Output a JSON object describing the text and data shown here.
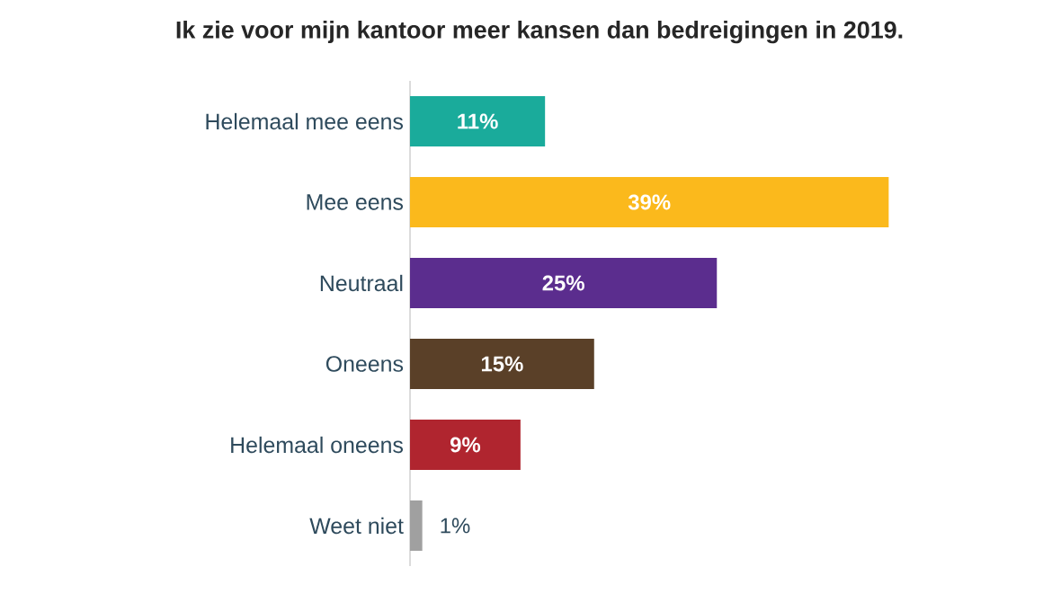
{
  "chart_data": {
    "type": "bar",
    "orientation": "horizontal",
    "title": "Ik zie voor mijn kantoor meer kansen dan bedreigingen in 2019.",
    "categories": [
      "Helemaal mee eens",
      "Mee eens",
      "Neutraal",
      "Oneens",
      "Helemaal oneens",
      "Weet niet"
    ],
    "values": [
      11,
      39,
      25,
      15,
      9,
      1
    ],
    "value_labels": [
      "11%",
      "39%",
      "25%",
      "15%",
      "9%",
      "1%"
    ],
    "colors": [
      "#1aab9b",
      "#fbb91c",
      "#5b2d8e",
      "#5a4028",
      "#b0252f",
      "#a0a0a0"
    ]
  }
}
